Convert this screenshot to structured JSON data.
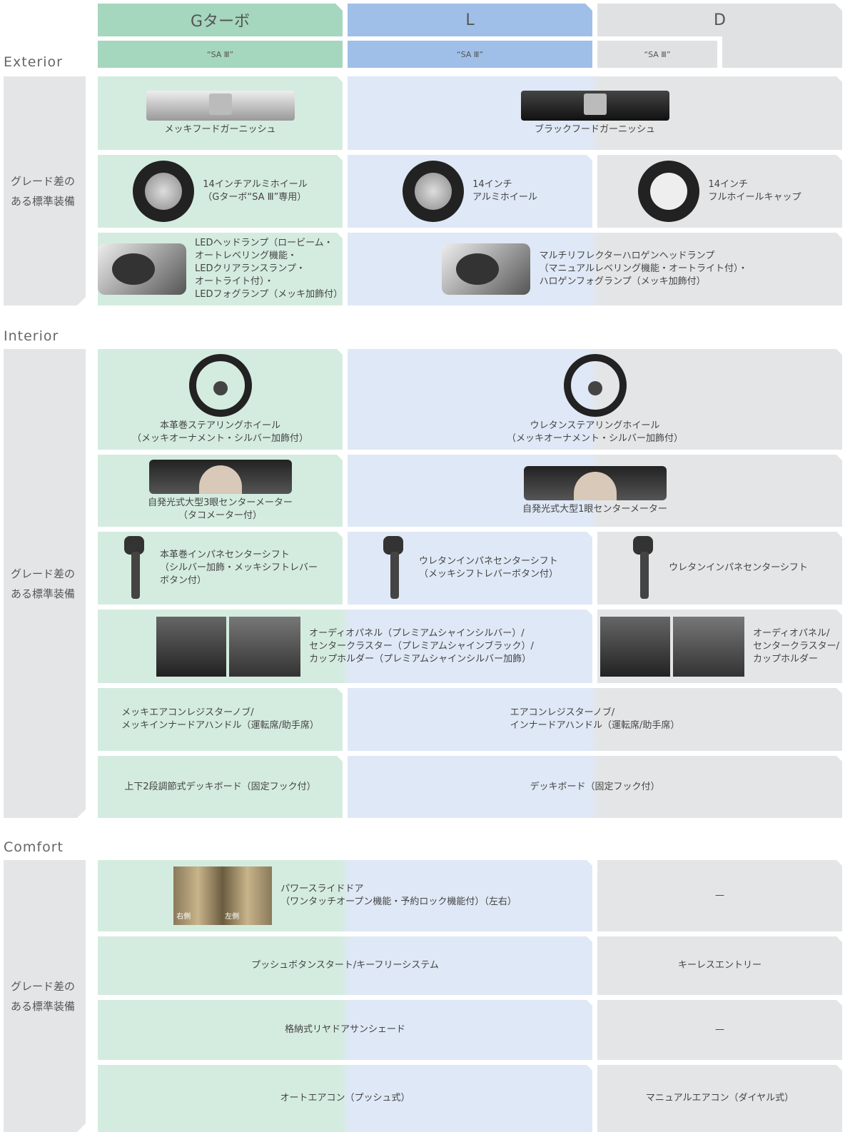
{
  "header": {
    "grades": [
      "Gターボ",
      "L",
      "D"
    ],
    "sub": [
      "“SA Ⅲ”",
      "“SA Ⅲ”",
      "“SA Ⅲ”"
    ]
  },
  "sections": [
    {
      "title": "Exterior",
      "side_label": "グレード差の\nある標準装備",
      "rows": [
        {
          "cells": [
            {
              "span": 1,
              "text": "メッキフードガーニッシュ"
            },
            {
              "span": 2,
              "text": "ブラックフードガーニッシュ"
            }
          ]
        },
        {
          "cells": [
            {
              "span": 1,
              "text": "14インチアルミホイール\n（Gターボ“SA Ⅲ”専用）"
            },
            {
              "span": 1,
              "text": "14インチ\nアルミホイール"
            },
            {
              "span": 1,
              "text": "14インチ\nフルホイールキャップ"
            }
          ]
        },
        {
          "cells": [
            {
              "span": 1,
              "text": "LEDヘッドランプ（ロービーム・\nオートレベリング機能・\nLEDクリアランスランプ・\nオートライト付）・\nLEDフォグランプ（メッキ加飾付）"
            },
            {
              "span": 2,
              "text": "マルチリフレクターハロゲンヘッドランプ\n（マニュアルレベリング機能・オートライト付）・\nハロゲンフォグランプ（メッキ加飾付）"
            }
          ]
        }
      ]
    },
    {
      "title": "Interior",
      "side_label": "グレード差の\nある標準装備",
      "rows": [
        {
          "cells": [
            {
              "span": 1,
              "text": "本革巻ステアリングホイール\n（メッキオーナメント・シルバー加飾付）"
            },
            {
              "span": 2,
              "text": "ウレタンステアリングホイール\n（メッキオーナメント・シルバー加飾付）"
            }
          ]
        },
        {
          "cells": [
            {
              "span": 1,
              "text": "自発光式大型3眼センターメーター\n（タコメーター付）"
            },
            {
              "span": 2,
              "text": "自発光式大型1眼センターメーター"
            }
          ]
        },
        {
          "cells": [
            {
              "span": 1,
              "text": "本革巻インパネセンターシフト\n（シルバー加飾・メッキシフトレバー\nボタン付）"
            },
            {
              "span": 1,
              "text": "ウレタンインパネセンターシフト\n（メッキシフトレバーボタン付）"
            },
            {
              "span": 1,
              "text": "ウレタンインパネセンターシフト"
            }
          ]
        },
        {
          "cells": [
            {
              "span": 2,
              "text": "オーディオパネル（プレミアムシャインシルバー）/\nセンタークラスター（プレミアムシャインブラック）/\nカップホルダー（プレミアムシャインシルバー加飾）"
            },
            {
              "span": 1,
              "text": "オーディオパネル/\nセンタークラスター/\nカップホルダー"
            }
          ]
        },
        {
          "cells": [
            {
              "span": 1,
              "text": "メッキエアコンレジスターノブ/\nメッキインナードアハンドル（運転席/助手席）"
            },
            {
              "span": 2,
              "text": "エアコンレジスターノブ/\nインナードアハンドル（運転席/助手席）"
            }
          ]
        },
        {
          "cells": [
            {
              "span": 1,
              "text": "上下2段調節式デッキボード（固定フック付）"
            },
            {
              "span": 2,
              "text": "デッキボード（固定フック付）"
            }
          ]
        }
      ]
    },
    {
      "title": "Comfort",
      "side_label": "グレード差の\nある標準装備",
      "rows": [
        {
          "cells": [
            {
              "span": 2,
              "text": "パワースライドドア\n（ワンタッチオープン機能・予約ロック機能付）（左右）",
              "image_labels": [
                "右側",
                "左側"
              ]
            },
            {
              "span": 1,
              "text": "—"
            }
          ]
        },
        {
          "cells": [
            {
              "span": 2,
              "text": "プッシュボタンスタート/キーフリーシステム"
            },
            {
              "span": 1,
              "text": "キーレスエントリー"
            }
          ]
        },
        {
          "cells": [
            {
              "span": 2,
              "text": "格納式リヤドアサンシェード"
            },
            {
              "span": 1,
              "text": "—"
            }
          ]
        },
        {
          "cells": [
            {
              "span": 2,
              "text": "オートエアコン（プッシュ式）"
            },
            {
              "span": 1,
              "text": "マニュアルエアコン（ダイヤル式）"
            }
          ]
        }
      ]
    }
  ]
}
